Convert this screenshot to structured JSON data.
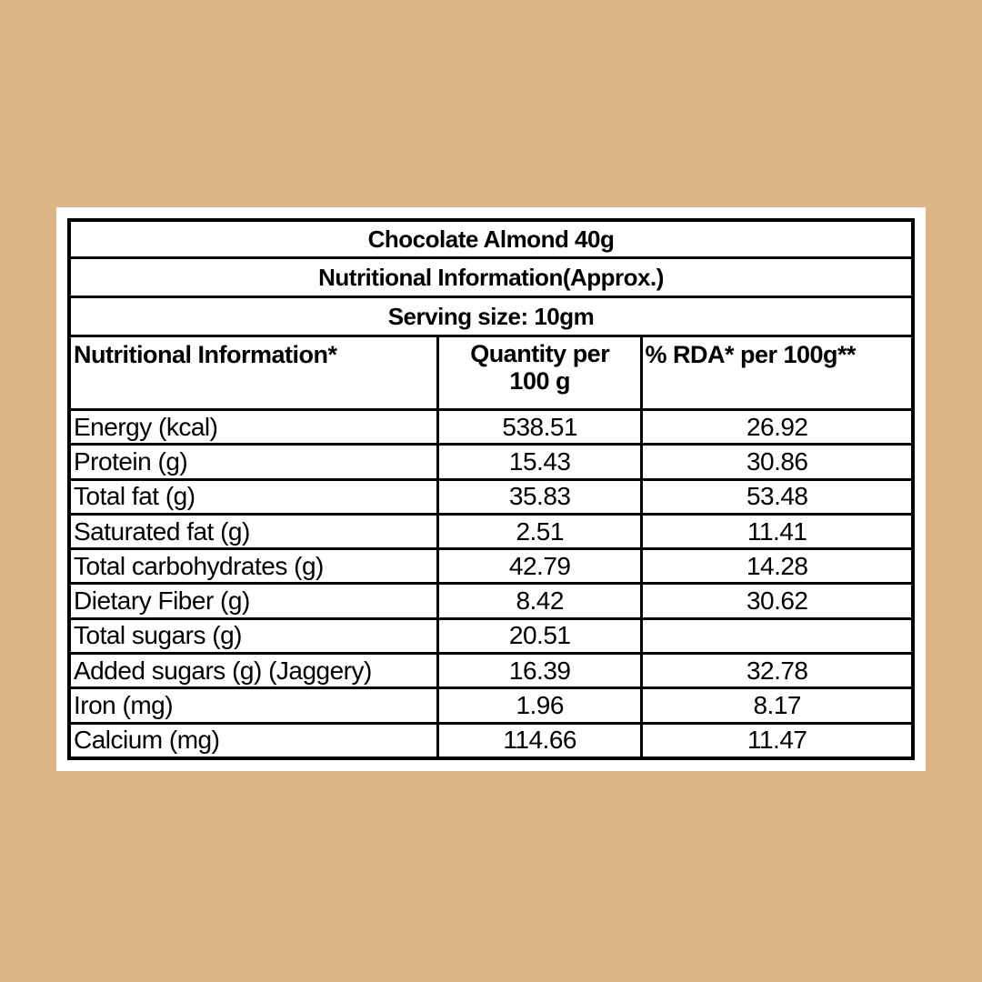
{
  "page": {
    "background_color": "#ddb685",
    "card_color": "#ffffff",
    "border_color": "#000000"
  },
  "table": {
    "title": "Chocolate Almond 40g",
    "subtitle": "Nutritional Information(Approx.)",
    "serving": "Serving size: 10gm",
    "header": {
      "col1": "Nutritional Information*",
      "col2_line1": "Quantity per",
      "col2_line2": "100 g",
      "col3": "% RDA* per 100g**"
    },
    "rows": [
      {
        "label": "Energy (kcal)",
        "qty": "538.51",
        "rda": "26.92"
      },
      {
        "label": "Protein (g)",
        "qty": "15.43",
        "rda": "30.86"
      },
      {
        "label": "Total fat (g)",
        "qty": "35.83",
        "rda": "53.48"
      },
      {
        "label": "Saturated fat (g)",
        "qty": "2.51",
        "rda": "11.41"
      },
      {
        "label": "Total carbohydrates (g)",
        "qty": "42.79",
        "rda": "14.28"
      },
      {
        "label": "Dietary Fiber (g)",
        "qty": "8.42",
        "rda": "30.62"
      },
      {
        "label": "Total sugars (g)",
        "qty": "20.51",
        "rda": ""
      },
      {
        "label": "Added sugars (g) (Jaggery)",
        "qty": "16.39",
        "rda": "32.78"
      },
      {
        "label": "Iron (mg)",
        "qty": "1.96",
        "rda": "8.17"
      },
      {
        "label": "Calcium (mg)",
        "qty": "114.66",
        "rda": "11.47"
      }
    ]
  }
}
